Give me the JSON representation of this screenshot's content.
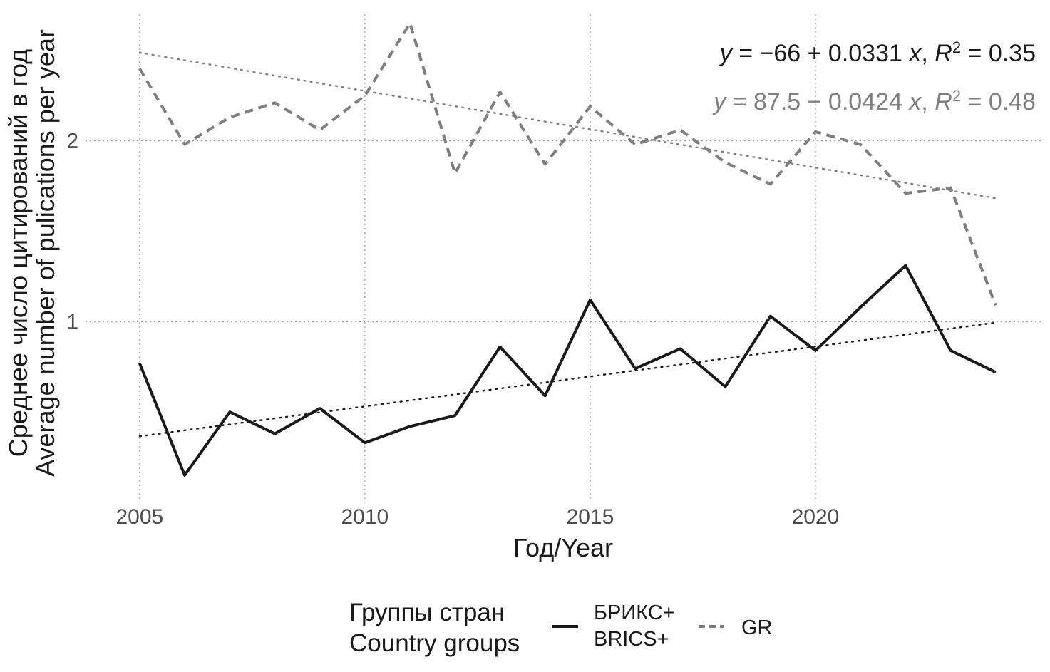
{
  "chart_data": {
    "type": "line",
    "title": "",
    "xlabel": "Год/Year",
    "ylabel_lines": [
      "Среднее число цитирований в год",
      "Average number of pulications per year"
    ],
    "x_ticks": [
      2005,
      2010,
      2015,
      2020
    ],
    "y_ticks": [
      1,
      2
    ],
    "xlim": [
      2003.8,
      2025
    ],
    "ylim": [
      0,
      2.7
    ],
    "grid": "dotted major gridlines",
    "legend_position": "bottom",
    "legend": {
      "title_lines": [
        "Группы стран",
        "Country groups"
      ],
      "entries": [
        {
          "label_lines": [
            "БРИКС+",
            "BRICS+"
          ],
          "color": "#1a1a1a",
          "style": "solid"
        },
        {
          "label_lines": [
            "GR"
          ],
          "color": "#7f7f7f",
          "style": "dashed"
        }
      ]
    },
    "x": [
      2005,
      2006,
      2007,
      2008,
      2009,
      2010,
      2011,
      2012,
      2013,
      2014,
      2015,
      2016,
      2017,
      2018,
      2019,
      2020,
      2021,
      2022,
      2023,
      2024
    ],
    "series": [
      {
        "name": "БРИКС+ / BRICS+",
        "color": "#1a1a1a",
        "style": "solid",
        "values": [
          0.77,
          0.15,
          0.5,
          0.38,
          0.52,
          0.33,
          0.42,
          0.48,
          0.86,
          0.59,
          1.12,
          0.74,
          0.85,
          0.64,
          1.03,
          0.84,
          1.08,
          1.31,
          0.84,
          0.72
        ]
      },
      {
        "name": "GR",
        "color": "#7f7f7f",
        "style": "dashed",
        "values": [
          2.4,
          1.98,
          2.13,
          2.21,
          2.06,
          2.25,
          2.65,
          1.82,
          2.27,
          1.87,
          2.19,
          1.98,
          2.06,
          1.88,
          1.76,
          2.05,
          1.98,
          1.71,
          1.74,
          1.09
        ]
      }
    ],
    "trendlines": [
      {
        "series": "БРИКС+ / BRICS+",
        "intercept": -66,
        "slope": 0.0331,
        "color": "#1a1a1a",
        "equation": {
          "intercept": "−66",
          "op": "+",
          "slope": "0.0331",
          "r2": "0.35"
        }
      },
      {
        "series": "GR",
        "intercept": 87.5,
        "slope": -0.0424,
        "color": "#7f7f7f",
        "equation": {
          "intercept": "87.5",
          "op": "−",
          "slope": "0.0424",
          "r2": "0.48"
        }
      }
    ]
  }
}
